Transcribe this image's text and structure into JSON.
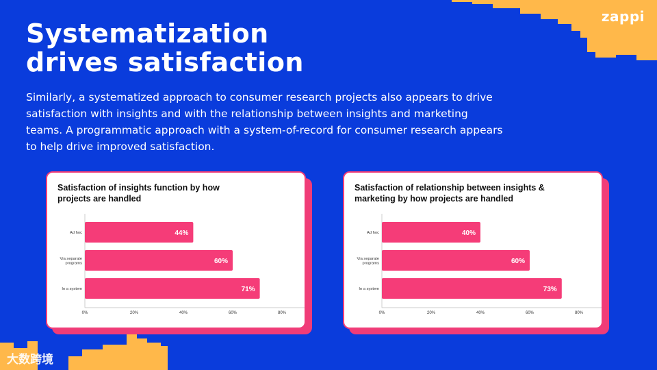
{
  "header": {
    "title_line1": "Systematization",
    "title_line2": "drives satisfaction",
    "logo": "zappi"
  },
  "intro": {
    "line1": "Similarly, a systematized approach to consumer research projects also appears to drive",
    "line2": "satisfaction with insights and with the relationship between insights and marketing",
    "line3": "teams. A programmatic approach with a system-of-record for consumer research appears",
    "line4": "to help drive improved satisfaction."
  },
  "colors": {
    "background": "#0a3cdc",
    "accent": "#f03c78",
    "bar": "#f53c78",
    "deco": "#ffb84a"
  },
  "watermark": "大数跨境",
  "chart_data": [
    {
      "type": "bar",
      "orientation": "horizontal",
      "title_line1": "Satisfaction of insights function by how",
      "title_line2": "projects are handled",
      "categories": [
        "Ad hoc",
        "Via separate programs",
        "In a system"
      ],
      "category_lines": [
        [
          "Ad hoc"
        ],
        [
          "Via separate",
          "programs"
        ],
        [
          "In a system"
        ]
      ],
      "values": [
        44,
        60,
        71
      ],
      "value_labels": [
        "44%",
        "60%",
        "71%"
      ],
      "xlim": [
        0,
        80
      ],
      "xticks": [
        0,
        20,
        40,
        60,
        80
      ],
      "xtick_labels": [
        "0%",
        "20%",
        "40%",
        "60%",
        "80%"
      ]
    },
    {
      "type": "bar",
      "orientation": "horizontal",
      "title_line1": "Satisfaction of relationship between insights &",
      "title_line2": "marketing by how projects are handled",
      "categories": [
        "Ad hoc",
        "Via separate programs",
        "In a system"
      ],
      "category_lines": [
        [
          "Ad hoc"
        ],
        [
          "Via separate",
          "programs"
        ],
        [
          "In a system"
        ]
      ],
      "values": [
        40,
        60,
        73
      ],
      "value_labels": [
        "40%",
        "60%",
        "73%"
      ],
      "xlim": [
        0,
        80
      ],
      "xticks": [
        0,
        20,
        40,
        60,
        80
      ],
      "xtick_labels": [
        "0%",
        "20%",
        "40%",
        "60%",
        "80%"
      ]
    }
  ]
}
